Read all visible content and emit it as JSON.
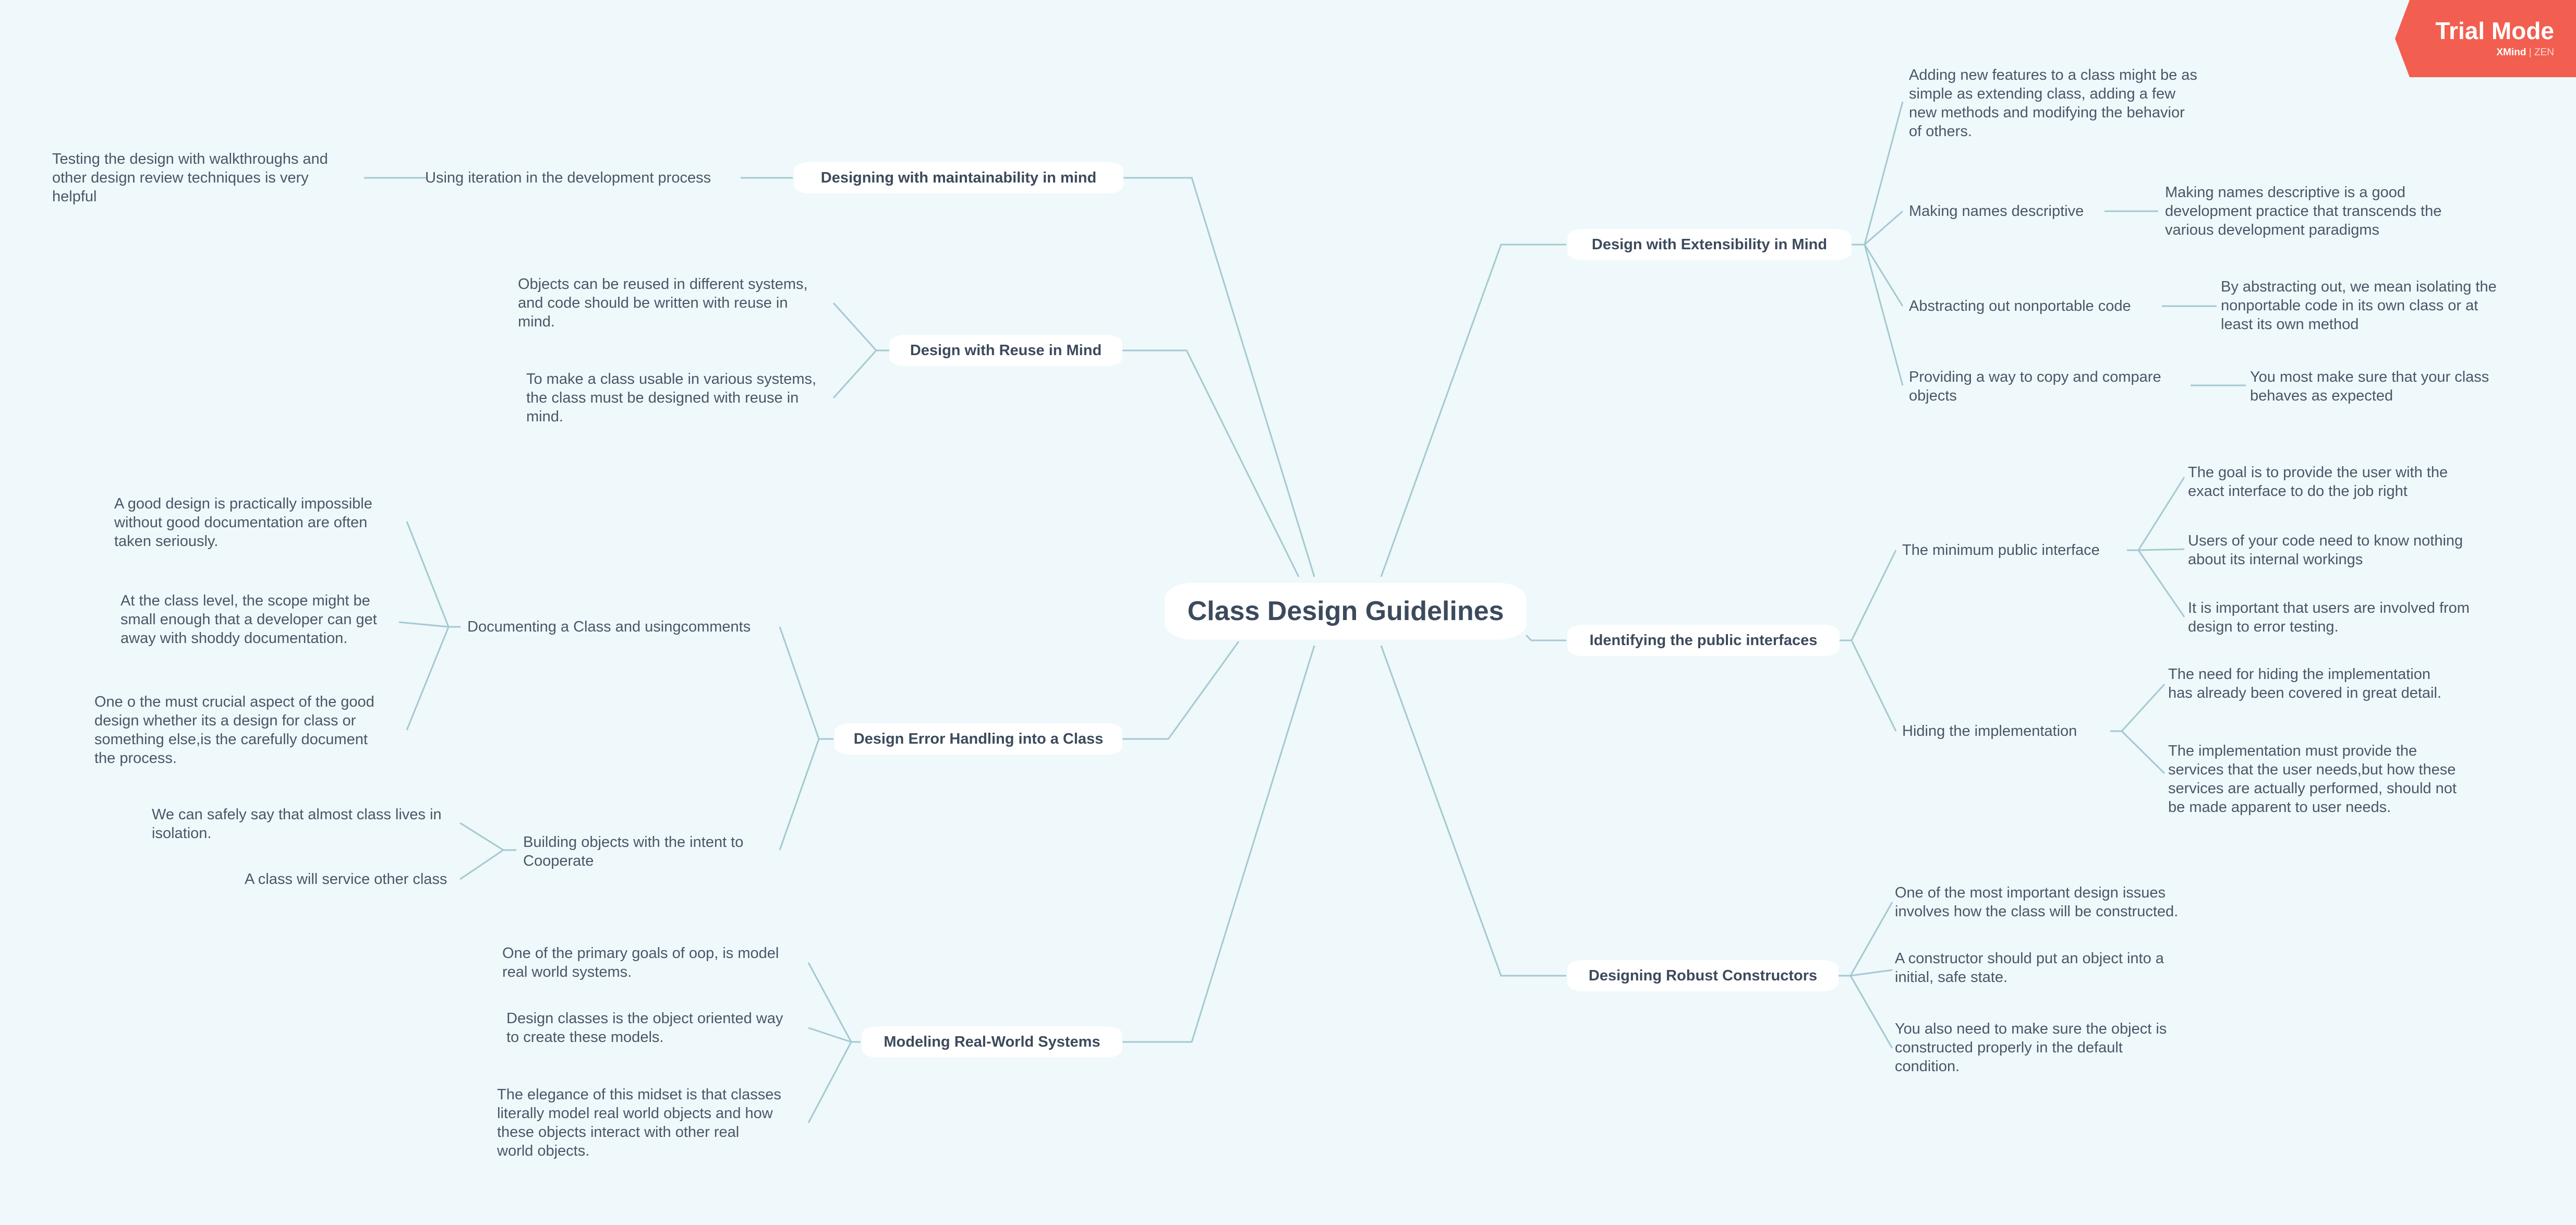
{
  "root": {
    "label": "Class Design Guidelines"
  },
  "trial": {
    "title": "Trial Mode",
    "brand": "XMind",
    "edition": "ZEN",
    "color": "#f25e4f"
  },
  "colors": {
    "background": "#eff8fa",
    "line": "#a3c9d3",
    "text": "#3c4a5c"
  },
  "branches": {
    "maintain": {
      "label": "Designing with maintainability in mind",
      "sub1": {
        "label": "Using iteration in the development process",
        "leaf1": [
          "Testing the design with walkthroughs and",
          "other design review techniques is very",
          "helpful"
        ]
      }
    },
    "reuse": {
      "label": "Design with Reuse in Mind",
      "leaf1": [
        "Objects can be reused in different systems,",
        "and code should be written with reuse in",
        "mind."
      ],
      "leaf2": [
        "To make a class usable in various systems,",
        "the class must be designed with reuse in",
        "mind."
      ]
    },
    "error": {
      "label": "Design Error Handling into a Class",
      "sub1": {
        "label": "Documenting a Class and usingcomments",
        "leaf1": [
          "A good design is practically impossible",
          "without good documentation are often",
          "taken seriously."
        ],
        "leaf2": [
          "At the class level, the scope might be",
          "small enough that a developer can get",
          "away with shoddy documentation."
        ],
        "leaf3": [
          "One o the must crucial aspect of the good",
          "design whether its a design for class or",
          "something else,is the carefully document",
          "the process."
        ]
      },
      "sub2": {
        "label": [
          "Building objects with the intent to",
          "Cooperate"
        ],
        "leaf1": [
          "We can safely say that almost class lives in",
          "isolation."
        ],
        "leaf2": [
          "A class will service other class"
        ]
      }
    },
    "model": {
      "label": "Modeling Real-World Systems",
      "leaf1": [
        "One of the primary goals of oop, is model",
        "real world systems."
      ],
      "leaf2": [
        "Design classes is the object oriented way",
        "to create these models."
      ],
      "leaf3": [
        "The elegance of this midset is that classes",
        "literally model real world objects and how",
        "these objects interact with other real",
        "world objects."
      ]
    },
    "extend": {
      "label": "Design with Extensibility in Mind",
      "sub1": {
        "label": [
          "Adding new features to a class might be as",
          "simple as extending class, adding a few",
          "new methods and modifying the behavior",
          "of others."
        ]
      },
      "sub2": {
        "label": "Making names descriptive",
        "leaf1": [
          "Making names descriptive is a good",
          "development practice that transcends the",
          "various development paradigms"
        ]
      },
      "sub3": {
        "label": "Abstracting out nonportable code",
        "leaf1": [
          "By abstracting out, we mean isolating the",
          "nonportable code in its own class or at",
          "least its own method"
        ]
      },
      "sub4": {
        "label": [
          "Providing a way to copy and compare",
          "objects"
        ],
        "leaf1": [
          "You most make sure that your class",
          "behaves as expected"
        ]
      }
    },
    "public": {
      "label": "Identifying the public interfaces",
      "sub1": {
        "label": "The minimum public interface",
        "leaf1": [
          "The goal is to provide the user with the",
          "exact interface to do the job right"
        ],
        "leaf2": [
          "Users of your code need to know nothing",
          "about its internal workings"
        ],
        "leaf3": [
          "It is important that users are involved from",
          "design to error testing."
        ]
      },
      "sub2": {
        "label": "Hiding the implementation",
        "leaf1": [
          "The need for hiding the implementation",
          "has already been covered in great detail."
        ],
        "leaf2": [
          "The implementation must provide the",
          "services that the user needs,but how these",
          "services are actually performed, should not",
          "be made apparent to user needs."
        ]
      }
    },
    "construct": {
      "label": "Designing Robust Constructors",
      "leaf1": [
        "One of the most important design issues",
        "involves how the class will be constructed."
      ],
      "leaf2": [
        "A constructor should put an object into a",
        "initial, safe state."
      ],
      "leaf3": [
        "You also need to make sure the object is",
        "constructed properly in the default",
        "condition."
      ]
    }
  }
}
